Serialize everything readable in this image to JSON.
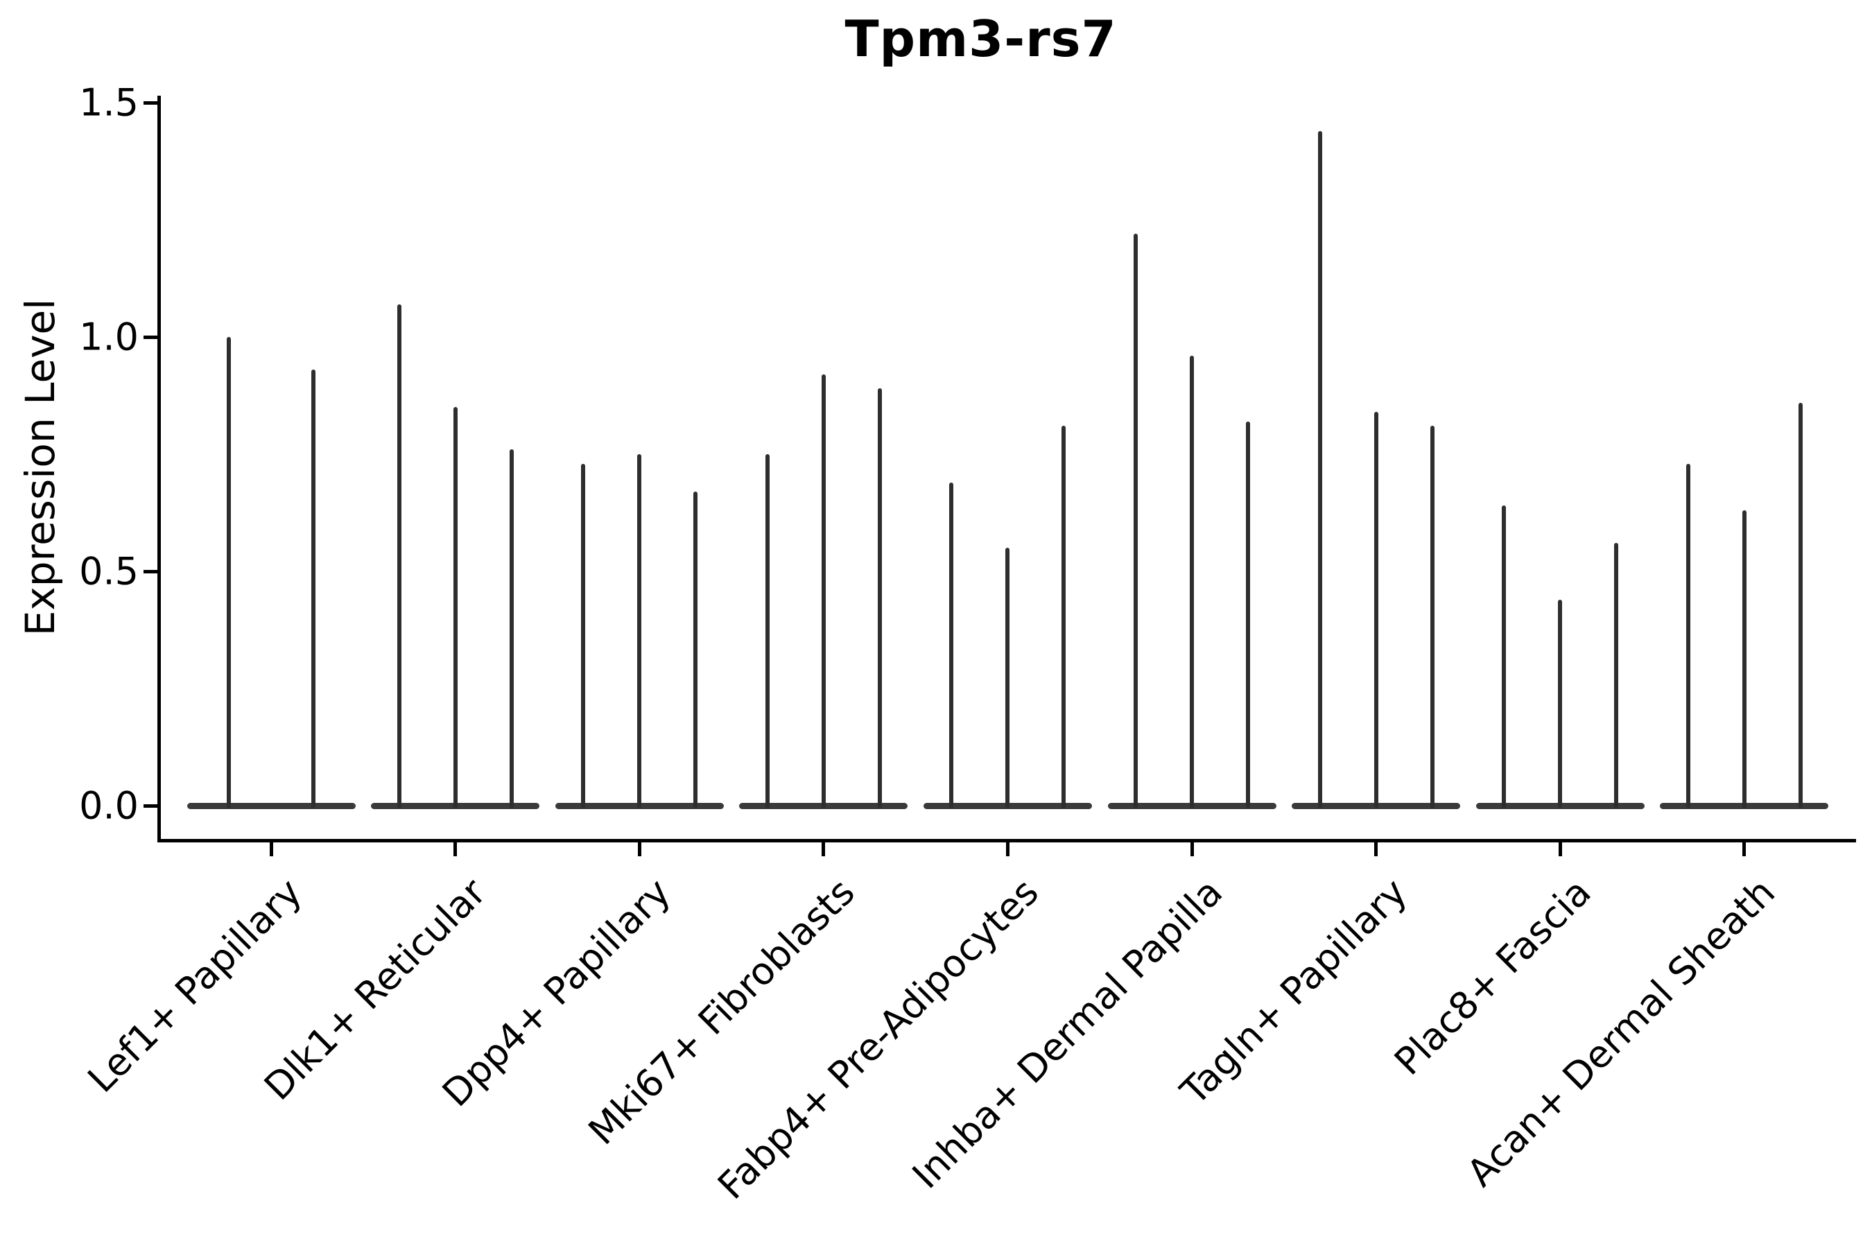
{
  "chart_data": {
    "type": "violin",
    "title": "Tpm3-rs7",
    "ylabel": "Expression Level",
    "xlabel": "",
    "ylim": [
      0,
      1.5
    ],
    "grid": false,
    "legend": "none",
    "yticks": [
      {
        "value": 0.0,
        "label": "0.0"
      },
      {
        "value": 0.5,
        "label": "0.5"
      },
      {
        "value": 1.0,
        "label": "1.0"
      },
      {
        "value": 1.5,
        "label": "1.5"
      }
    ],
    "categories": [
      "Lef1+ Papillary",
      "Dlk1+ Reticular",
      "Dpp4+ Papillary",
      "Mki67+ Fibroblasts",
      "Fabp4+ Pre-Adipocytes",
      "Inhba+ Dermal Papilla",
      "Tagln+ Papillary",
      "Plac8+ Fascia",
      "Acan+ Dermal Sheath"
    ],
    "groups": [
      {
        "label": "Lef1+ Papillary",
        "violin_max_values": [
          1.0,
          0.93
        ]
      },
      {
        "label": "Dlk1+ Reticular",
        "violin_max_values": [
          1.07,
          0.85,
          0.76
        ]
      },
      {
        "label": "Dpp4+ Papillary",
        "violin_max_values": [
          0.73,
          0.75,
          0.67
        ]
      },
      {
        "label": "Mki67+ Fibroblasts",
        "violin_max_values": [
          0.75,
          0.92,
          0.89
        ]
      },
      {
        "label": "Fabp4+ Pre-Adipocytes",
        "violin_max_values": [
          0.69,
          0.55,
          0.81
        ]
      },
      {
        "label": "Inhba+ Dermal Papilla",
        "violin_max_values": [
          1.22,
          0.96,
          0.82
        ]
      },
      {
        "label": "Tagln+ Papillary",
        "violin_max_values": [
          1.44,
          0.84,
          0.81
        ]
      },
      {
        "label": "Plac8+ Fascia",
        "violin_max_values": [
          0.64,
          0.44,
          0.56
        ]
      },
      {
        "label": "Acan+ Dermal Sheath",
        "violin_max_values": [
          0.73,
          0.63,
          0.86
        ]
      }
    ],
    "violin_baseline_value": 0.0,
    "colors": {
      "spike": "#2e2e2e",
      "baseline_bar": "#3a3a3a",
      "axis": "#000000",
      "text": "#000000",
      "background": "#ffffff"
    }
  }
}
